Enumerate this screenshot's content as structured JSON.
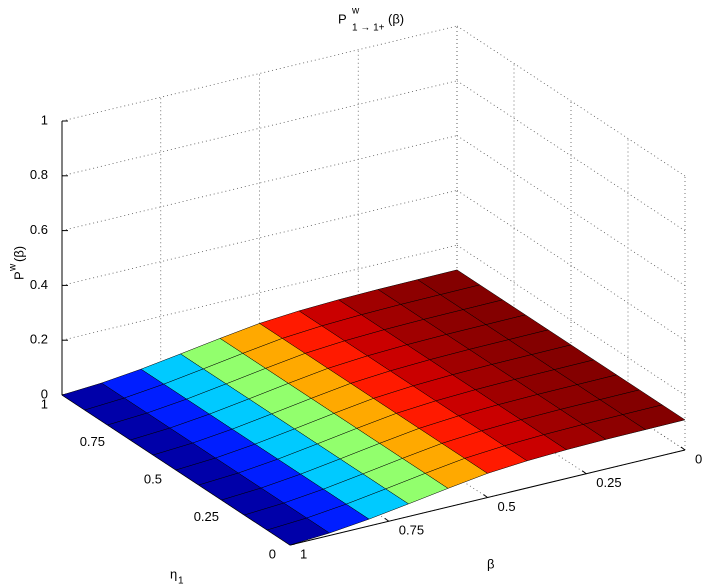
{
  "chart_data": {
    "type": "surface",
    "title": {
      "text": "P",
      "sup": "w",
      "sub": "1 → 1+",
      "tail": "(β)"
    },
    "xlabel": "β",
    "ylabel": {
      "text": "η",
      "sub": "1"
    },
    "zlabel": {
      "text": "P",
      "sup": "w",
      "tail": "(β)"
    },
    "x": [
      0,
      0.1,
      0.2,
      0.3,
      0.4,
      0.5,
      0.6,
      0.7,
      0.8,
      0.9,
      1
    ],
    "y": [
      0,
      0.1,
      0.2,
      0.3,
      0.4,
      0.5,
      0.6,
      0.7,
      0.8,
      0.9,
      1
    ],
    "z": [
      [
        0.11,
        0.109,
        0.108,
        0.105,
        0.099,
        0.088,
        0.068,
        0.046,
        0.025,
        0.009,
        0
      ],
      [
        0.11,
        0.109,
        0.108,
        0.105,
        0.099,
        0.088,
        0.068,
        0.046,
        0.025,
        0.009,
        0
      ],
      [
        0.11,
        0.109,
        0.108,
        0.105,
        0.099,
        0.088,
        0.068,
        0.046,
        0.025,
        0.009,
        0
      ],
      [
        0.11,
        0.109,
        0.108,
        0.105,
        0.099,
        0.088,
        0.068,
        0.046,
        0.025,
        0.009,
        0
      ],
      [
        0.11,
        0.109,
        0.108,
        0.105,
        0.099,
        0.088,
        0.068,
        0.046,
        0.025,
        0.009,
        0
      ],
      [
        0.11,
        0.109,
        0.108,
        0.105,
        0.099,
        0.088,
        0.068,
        0.046,
        0.025,
        0.009,
        0
      ],
      [
        0.11,
        0.109,
        0.108,
        0.105,
        0.099,
        0.088,
        0.068,
        0.046,
        0.025,
        0.009,
        0
      ],
      [
        0.11,
        0.109,
        0.108,
        0.105,
        0.099,
        0.088,
        0.068,
        0.046,
        0.025,
        0.009,
        0
      ],
      [
        0.11,
        0.109,
        0.108,
        0.105,
        0.099,
        0.088,
        0.068,
        0.046,
        0.025,
        0.009,
        0
      ],
      [
        0.11,
        0.109,
        0.108,
        0.105,
        0.099,
        0.088,
        0.068,
        0.046,
        0.025,
        0.009,
        0
      ],
      [
        0.11,
        0.109,
        0.108,
        0.105,
        0.099,
        0.088,
        0.068,
        0.046,
        0.025,
        0.009,
        0
      ]
    ],
    "xlim": [
      0,
      1
    ],
    "ylim": [
      0,
      1
    ],
    "zlim": [
      0,
      1
    ],
    "xticks": [
      0,
      0.25,
      0.5,
      0.75,
      1
    ],
    "yticks": [
      0,
      0.25,
      0.5,
      0.75,
      1
    ],
    "zticks": [
      0,
      0.2,
      0.4,
      0.6,
      0.8,
      1
    ],
    "grid": true,
    "colormap": "jet"
  }
}
